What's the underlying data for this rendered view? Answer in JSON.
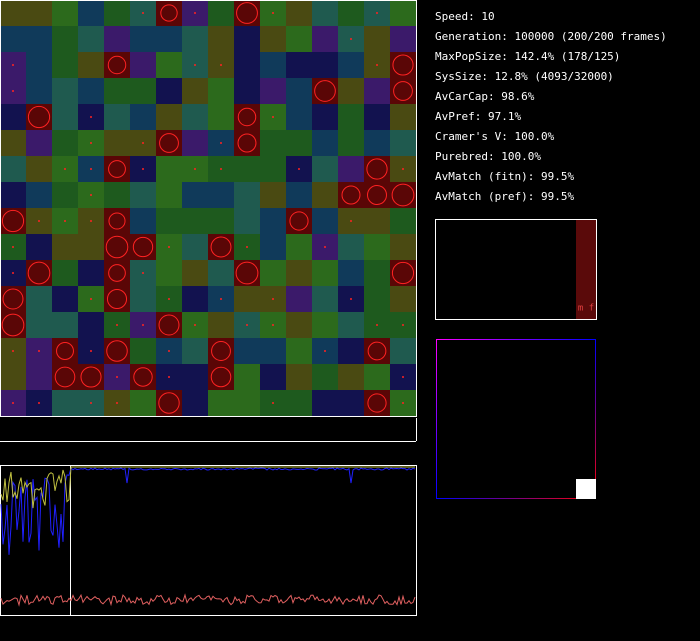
{
  "stats": [
    "Speed: 10",
    "Generation: 100000 (200/200 frames)",
    "MaxPopSize: 142.4% (178/125)",
    "SysSize: 12.8% (4093/32000)",
    "AvCarCap: 98.6%",
    "AvPref: 97.1%",
    "Cramer's V: 100.0%",
    "Purebred: 100.0%",
    "AvMatch (fitn): 99.5%",
    "AvMatch (pref): 99.5%"
  ],
  "panel_label": "m f"
}
